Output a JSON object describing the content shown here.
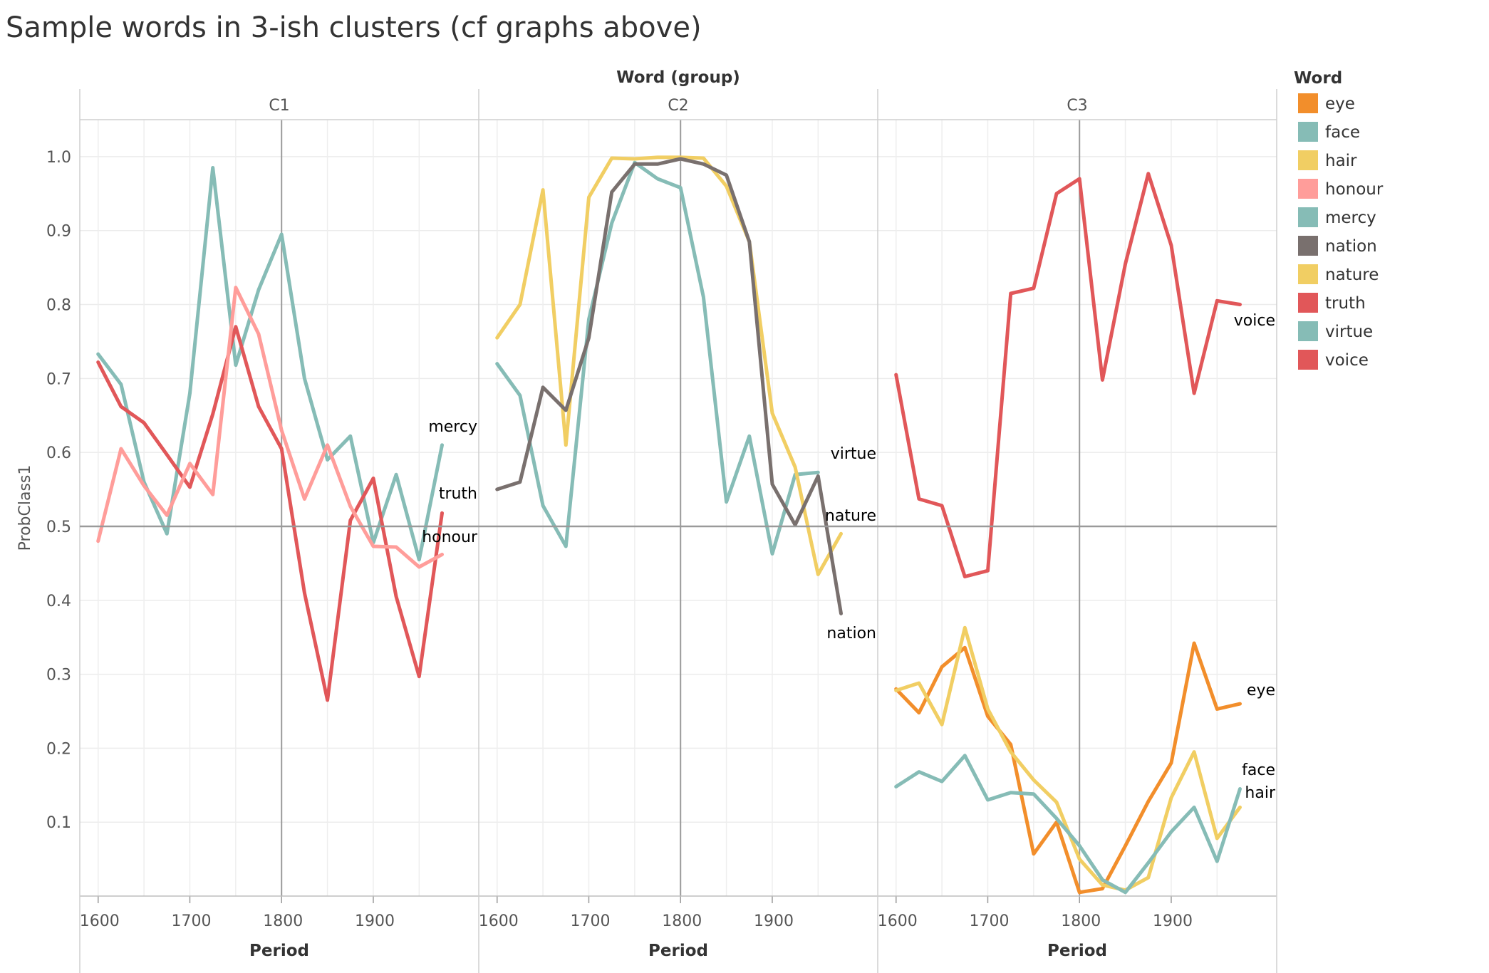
{
  "title": "Sample words in 3-ish clusters (cf graphs above)",
  "chart_data": {
    "type": "line",
    "column_header": "Word (group)",
    "panels": [
      "C1",
      "C2",
      "C3"
    ],
    "xlabel": "Period",
    "ylabel": "ProbClass1",
    "x_ticks": [
      1600,
      1700,
      1800,
      1900
    ],
    "y_ticks": [
      0.1,
      0.2,
      0.3,
      0.4,
      0.5,
      0.6,
      0.7,
      0.8,
      0.9,
      1.0
    ],
    "y_tick_labels": [
      "0.1",
      "0.2",
      "0.3",
      "0.4",
      "0.5",
      "0.6",
      "0.7",
      "0.8",
      "0.9",
      "1.0"
    ],
    "xlim": [
      1580,
      2015
    ],
    "ylim": [
      0,
      1.05
    ],
    "reference_line_y": 0.5,
    "reference_line_x": 1800,
    "legend": {
      "title": "Word",
      "position": "right",
      "items": [
        {
          "name": "eye",
          "color": "#F28E2B"
        },
        {
          "name": "face",
          "color": "#86BCB6"
        },
        {
          "name": "hair",
          "color": "#F1CE63"
        },
        {
          "name": "honour",
          "color": "#FF9D9A"
        },
        {
          "name": "mercy",
          "color": "#86BCB6"
        },
        {
          "name": "nation",
          "color": "#79706E"
        },
        {
          "name": "nature",
          "color": "#F1CE63"
        },
        {
          "name": "truth",
          "color": "#E15759"
        },
        {
          "name": "virtue",
          "color": "#86BCB6"
        },
        {
          "name": "voice",
          "color": "#E15759"
        }
      ]
    },
    "series": [
      {
        "name": "mercy",
        "panel": "C1",
        "color": "#86BCB6",
        "x": [
          1600,
          1625,
          1650,
          1675,
          1700,
          1725,
          1750,
          1775,
          1800,
          1825,
          1850,
          1875,
          1900,
          1925,
          1950,
          1975
        ],
        "y": [
          0.733,
          0.692,
          0.56,
          0.49,
          0.68,
          0.985,
          0.718,
          0.82,
          0.895,
          0.7,
          0.59,
          0.622,
          0.478,
          0.57,
          0.455,
          0.61
        ]
      },
      {
        "name": "truth",
        "panel": "C1",
        "color": "#E15759",
        "x": [
          1600,
          1625,
          1650,
          1675,
          1700,
          1725,
          1750,
          1775,
          1800,
          1825,
          1850,
          1875,
          1900,
          1925,
          1950,
          1975
        ],
        "y": [
          0.722,
          0.662,
          0.64,
          0.597,
          0.553,
          0.652,
          0.77,
          0.662,
          0.605,
          0.41,
          0.265,
          0.508,
          0.565,
          0.405,
          0.297,
          0.518
        ]
      },
      {
        "name": "honour",
        "panel": "C1",
        "color": "#FF9D9A",
        "x": [
          1600,
          1625,
          1650,
          1675,
          1700,
          1725,
          1750,
          1775,
          1800,
          1825,
          1850,
          1875,
          1900,
          1925,
          1950,
          1975
        ],
        "y": [
          0.48,
          0.605,
          0.555,
          0.515,
          0.585,
          0.543,
          0.823,
          0.76,
          0.63,
          0.537,
          0.61,
          0.527,
          0.473,
          0.472,
          0.445,
          0.462
        ]
      },
      {
        "name": "virtue",
        "panel": "C2",
        "color": "#86BCB6",
        "x": [
          1600,
          1625,
          1650,
          1675,
          1700,
          1725,
          1750,
          1775,
          1800,
          1825,
          1850,
          1875,
          1900,
          1925,
          1950
        ],
        "y": [
          0.72,
          0.677,
          0.528,
          0.473,
          0.78,
          0.91,
          0.992,
          0.97,
          0.958,
          0.81,
          0.533,
          0.622,
          0.463,
          0.57,
          0.573
        ]
      },
      {
        "name": "nature",
        "panel": "C2",
        "color": "#F1CE63",
        "x": [
          1600,
          1625,
          1650,
          1675,
          1700,
          1725,
          1750,
          1775,
          1800,
          1825,
          1850,
          1875,
          1900,
          1925,
          1950,
          1975
        ],
        "y": [
          0.755,
          0.8,
          0.955,
          0.61,
          0.945,
          0.998,
          0.997,
          0.999,
          0.999,
          0.998,
          0.96,
          0.885,
          0.653,
          0.58,
          0.435,
          0.49
        ]
      },
      {
        "name": "nation",
        "panel": "C2",
        "color": "#79706E",
        "x": [
          1600,
          1625,
          1650,
          1675,
          1700,
          1725,
          1750,
          1775,
          1800,
          1825,
          1850,
          1875,
          1900,
          1925,
          1950,
          1975
        ],
        "y": [
          0.55,
          0.56,
          0.688,
          0.657,
          0.755,
          0.952,
          0.99,
          0.99,
          0.997,
          0.99,
          0.975,
          0.885,
          0.557,
          0.502,
          0.568,
          0.382
        ]
      },
      {
        "name": "voice",
        "panel": "C3",
        "color": "#E15759",
        "x": [
          1600,
          1625,
          1650,
          1675,
          1700,
          1725,
          1750,
          1775,
          1800,
          1825,
          1850,
          1875,
          1900,
          1925,
          1950,
          1975
        ],
        "y": [
          0.705,
          0.537,
          0.528,
          0.432,
          0.44,
          0.815,
          0.822,
          0.95,
          0.97,
          0.698,
          0.855,
          0.977,
          0.88,
          0.68,
          0.805,
          0.8
        ]
      },
      {
        "name": "eye",
        "panel": "C3",
        "color": "#F28E2B",
        "x": [
          1600,
          1625,
          1650,
          1675,
          1700,
          1725,
          1750,
          1775,
          1800,
          1825,
          1850,
          1875,
          1900,
          1925,
          1950,
          1975
        ],
        "y": [
          0.28,
          0.248,
          0.31,
          0.336,
          0.243,
          0.205,
          0.057,
          0.1,
          0.005,
          0.01,
          0.068,
          0.128,
          0.18,
          0.342,
          0.253,
          0.26
        ]
      },
      {
        "name": "hair",
        "panel": "C3",
        "color": "#F1CE63",
        "x": [
          1600,
          1625,
          1650,
          1675,
          1700,
          1725,
          1750,
          1775,
          1800,
          1825,
          1850,
          1875,
          1900,
          1925,
          1950,
          1975
        ],
        "y": [
          0.278,
          0.288,
          0.232,
          0.363,
          0.253,
          0.195,
          0.157,
          0.127,
          0.05,
          0.015,
          0.008,
          0.025,
          0.133,
          0.195,
          0.078,
          0.12
        ]
      },
      {
        "name": "face",
        "panel": "C3",
        "color": "#86BCB6",
        "x": [
          1600,
          1625,
          1650,
          1675,
          1700,
          1725,
          1750,
          1775,
          1800,
          1825,
          1850,
          1875,
          1900,
          1925,
          1950,
          1975
        ],
        "y": [
          0.148,
          0.168,
          0.155,
          0.19,
          0.13,
          0.14,
          0.138,
          0.105,
          0.068,
          0.022,
          0.005,
          0.045,
          0.087,
          0.12,
          0.047,
          0.145
        ]
      }
    ],
    "line_labels": [
      {
        "text": "mercy",
        "panel": "C1"
      },
      {
        "text": "truth",
        "panel": "C1"
      },
      {
        "text": "honour",
        "panel": "C1"
      },
      {
        "text": "virtue",
        "panel": "C2"
      },
      {
        "text": "nature",
        "panel": "C2"
      },
      {
        "text": "nation",
        "panel": "C2"
      },
      {
        "text": "voice",
        "panel": "C3"
      },
      {
        "text": "eye",
        "panel": "C3"
      },
      {
        "text": "face",
        "panel": "C3"
      },
      {
        "text": "hair",
        "panel": "C3"
      }
    ]
  }
}
